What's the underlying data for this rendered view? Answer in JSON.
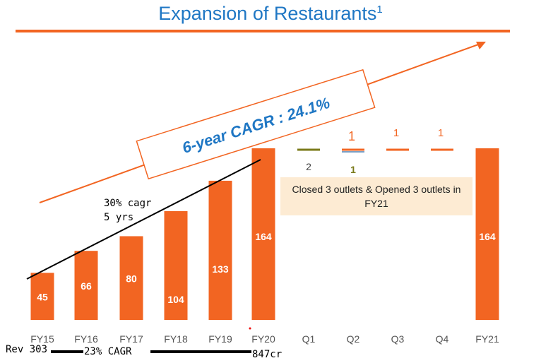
{
  "title": "Expansion of Restaurants",
  "title_sup": "1",
  "colors": {
    "bar": "#f26522",
    "title": "#1f77c4",
    "note_bg": "#fdebd3",
    "olive": "#7a7a1a"
  },
  "chart_data": {
    "type": "bar",
    "categories": [
      "FY15",
      "FY16",
      "FY17",
      "FY18",
      "FY19",
      "FY20",
      "Q1",
      "Q2",
      "Q3",
      "Q4",
      "FY21"
    ],
    "values": [
      45,
      66,
      80,
      104,
      133,
      164,
      null,
      null,
      null,
      null,
      164
    ],
    "quarterly_changes": [
      {
        "quarter": "Q1",
        "opened": null,
        "closed": 2
      },
      {
        "quarter": "Q2",
        "opened": 1,
        "closed": 1
      },
      {
        "quarter": "Q3",
        "opened": 1,
        "closed": null
      },
      {
        "quarter": "Q4",
        "opened": 1,
        "closed": null
      }
    ],
    "cagr_label": "6-year CAGR : 24.1%",
    "note": "Closed 3 outlets & Opened 3 outlets in FY21",
    "ylim": [
      0,
      164
    ]
  },
  "annotations": {
    "cagr_line1": "30% cagr",
    "cagr_line2": "5 yrs",
    "rev_start": "Rev 303",
    "rev_cagr": "23% CAGR",
    "rev_end": "847cr"
  }
}
